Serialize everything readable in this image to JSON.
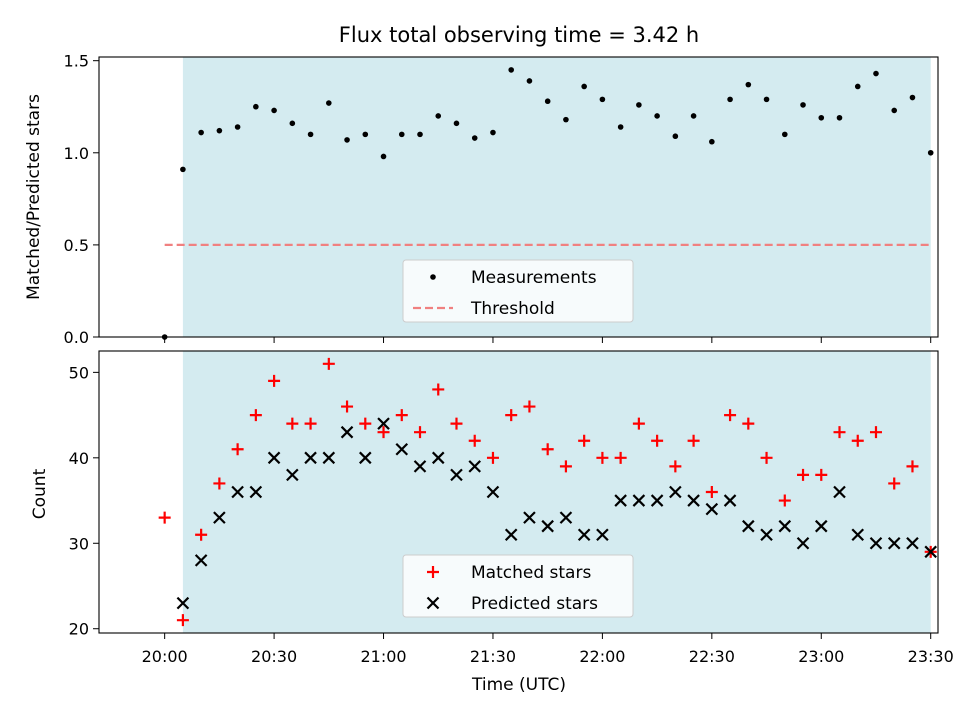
{
  "chart_data": [
    {
      "type": "scatter",
      "title": "Flux total observing time = 3.42 h",
      "xlabel": "",
      "ylabel": "Matched/Predicted stars",
      "ylim": [
        0,
        1.52
      ],
      "yticks": [
        "0.0",
        "0.5",
        "1.0",
        "1.5"
      ],
      "ytick_values": [
        0,
        0.5,
        1.0,
        1.5
      ],
      "xlim_minutes_after_20h": [
        -18,
        212
      ],
      "shaded_range_minutes": [
        5,
        210
      ],
      "shade_color": "#d4ebf0",
      "legend": {
        "placement": "lower-center",
        "entries": [
          "Measurements",
          "Threshold"
        ]
      },
      "threshold": {
        "name": "Threshold",
        "y": 0.5,
        "x_range_minutes": [
          0,
          210
        ],
        "color": "#f08080",
        "style": "dashed"
      },
      "series": [
        {
          "name": "Measurements",
          "color": "#000000",
          "x_minutes": [
            0,
            5,
            10,
            15,
            20,
            25,
            30,
            35,
            40,
            45,
            50,
            55,
            60,
            65,
            70,
            75,
            80,
            85,
            90,
            95,
            100,
            105,
            110,
            115,
            120,
            125,
            130,
            135,
            140,
            145,
            150,
            155,
            160,
            165,
            170,
            175,
            180,
            185,
            190,
            195,
            200,
            205,
            210
          ],
          "values": [
            0.0,
            0.91,
            1.11,
            1.12,
            1.14,
            1.25,
            1.23,
            1.16,
            1.1,
            1.27,
            1.07,
            1.1,
            0.98,
            1.1,
            1.1,
            1.2,
            1.16,
            1.08,
            1.11,
            1.45,
            1.39,
            1.28,
            1.18,
            1.36,
            1.29,
            1.14,
            1.26,
            1.2,
            1.09,
            1.2,
            1.06,
            1.29,
            1.37,
            1.29,
            1.1,
            1.26,
            1.19,
            1.19,
            1.36,
            1.43,
            1.23,
            1.3,
            1.0
          ]
        }
      ]
    },
    {
      "type": "scatter",
      "title": "",
      "xlabel": "Time (UTC)",
      "ylabel": "Count",
      "ylim": [
        19.5,
        52.5
      ],
      "yticks": [
        "20",
        "30",
        "40",
        "50"
      ],
      "ytick_values": [
        20,
        30,
        40,
        50
      ],
      "xticks": [
        "20:00",
        "20:30",
        "21:00",
        "21:30",
        "22:00",
        "22:30",
        "23:00",
        "23:30"
      ],
      "xtick_minutes": [
        0,
        30,
        60,
        90,
        120,
        150,
        180,
        210
      ],
      "xlim_minutes_after_20h": [
        -18,
        212
      ],
      "shaded_range_minutes": [
        5,
        210
      ],
      "shade_color": "#d4ebf0",
      "legend": {
        "placement": "lower-center",
        "entries": [
          "Matched stars",
          "Predicted stars"
        ]
      },
      "series": [
        {
          "name": "Matched stars",
          "marker": "plus",
          "color": "#ff0000",
          "x_minutes": [
            0,
            5,
            10,
            15,
            20,
            25,
            30,
            35,
            40,
            45,
            50,
            55,
            60,
            65,
            70,
            75,
            80,
            85,
            90,
            95,
            100,
            105,
            110,
            115,
            120,
            125,
            130,
            135,
            140,
            145,
            150,
            155,
            160,
            165,
            170,
            175,
            180,
            185,
            190,
            195,
            200,
            205,
            210
          ],
          "values": [
            33,
            21,
            31,
            37,
            41,
            45,
            49,
            44,
            44,
            51,
            46,
            44,
            43,
            45,
            43,
            48,
            44,
            42,
            40,
            45,
            46,
            41,
            39,
            42,
            40,
            40,
            44,
            42,
            39,
            42,
            36,
            45,
            44,
            40,
            35,
            38,
            38,
            43,
            42,
            43,
            37,
            39,
            29
          ]
        },
        {
          "name": "Predicted stars",
          "marker": "x",
          "color": "#000000",
          "x_minutes": [
            5,
            10,
            15,
            20,
            25,
            30,
            35,
            40,
            45,
            50,
            55,
            60,
            65,
            70,
            75,
            80,
            85,
            90,
            95,
            100,
            105,
            110,
            115,
            120,
            125,
            130,
            135,
            140,
            145,
            150,
            155,
            160,
            165,
            170,
            175,
            180,
            185,
            190,
            195,
            200,
            205,
            210
          ],
          "values": [
            23,
            28,
            33,
            36,
            36,
            40,
            38,
            40,
            40,
            43,
            40,
            44,
            41,
            39,
            40,
            38,
            39,
            36,
            31,
            33,
            32,
            33,
            31,
            31,
            35,
            35,
            35,
            36,
            35,
            34,
            35,
            32,
            31,
            32,
            30,
            32,
            36,
            31,
            30,
            30,
            30,
            29
          ]
        }
      ]
    }
  ]
}
